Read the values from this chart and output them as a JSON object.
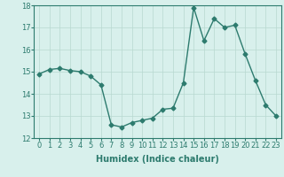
{
  "x": [
    0,
    1,
    2,
    3,
    4,
    5,
    6,
    7,
    8,
    9,
    10,
    11,
    12,
    13,
    14,
    15,
    16,
    17,
    18,
    19,
    20,
    21,
    22,
    23
  ],
  "y": [
    14.9,
    15.1,
    15.15,
    15.05,
    15.0,
    14.8,
    14.4,
    12.6,
    12.5,
    12.7,
    12.8,
    12.9,
    13.3,
    13.35,
    14.5,
    17.9,
    16.4,
    17.4,
    17.0,
    17.1,
    15.8,
    14.6,
    13.5,
    13.0
  ],
  "line_color": "#2d7b6e",
  "marker": "D",
  "markersize": 2.5,
  "linewidth": 1.0,
  "bg_color": "#d8f0ec",
  "grid_color": "#b8d8d0",
  "xlabel": "Humidex (Indice chaleur)",
  "xlabel_fontsize": 7,
  "tick_fontsize": 6,
  "ylim": [
    12,
    18
  ],
  "xlim": [
    -0.5,
    23.5
  ],
  "yticks": [
    12,
    13,
    14,
    15,
    16,
    17,
    18
  ],
  "xticks": [
    0,
    1,
    2,
    3,
    4,
    5,
    6,
    7,
    8,
    9,
    10,
    11,
    12,
    13,
    14,
    15,
    16,
    17,
    18,
    19,
    20,
    21,
    22,
    23
  ]
}
